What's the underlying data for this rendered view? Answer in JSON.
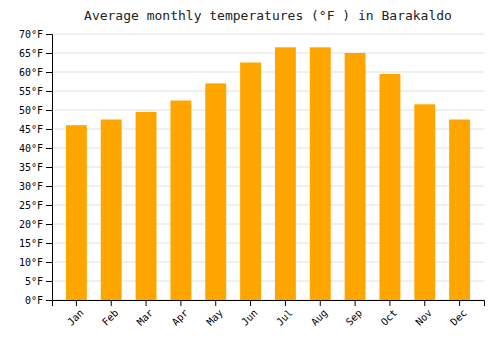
{
  "chart_data": {
    "type": "bar",
    "title": "Average monthly temperatures (°F ) in Barakaldo",
    "categories": [
      "Jan",
      "Feb",
      "Mar",
      "Apr",
      "May",
      "Jun",
      "Jul",
      "Aug",
      "Sep",
      "Oct",
      "Nov",
      "Dec"
    ],
    "values": [
      46,
      47.5,
      49.5,
      52.5,
      57,
      62.5,
      66.5,
      66.5,
      65,
      59.5,
      51.5,
      47.5
    ],
    "color": "#FFA500",
    "ylim": [
      0,
      70
    ],
    "yticks": [
      {
        "value": 0,
        "label": "0°F"
      },
      {
        "value": 5,
        "label": "5°F"
      },
      {
        "value": 10,
        "label": "10°F"
      },
      {
        "value": 15,
        "label": "15°F"
      },
      {
        "value": 20,
        "label": "20°F"
      },
      {
        "value": 25,
        "label": "25°F"
      },
      {
        "value": 30,
        "label": "30°F"
      },
      {
        "value": 35,
        "label": "35°F"
      },
      {
        "value": 40,
        "label": "40°F"
      },
      {
        "value": 45,
        "label": "45°F"
      },
      {
        "value": 50,
        "label": "50°F"
      },
      {
        "value": 55,
        "label": "55°F"
      },
      {
        "value": 60,
        "label": "60°F"
      },
      {
        "value": 65,
        "label": "65°F"
      },
      {
        "value": 70,
        "label": "70°F"
      }
    ],
    "grid": true
  }
}
